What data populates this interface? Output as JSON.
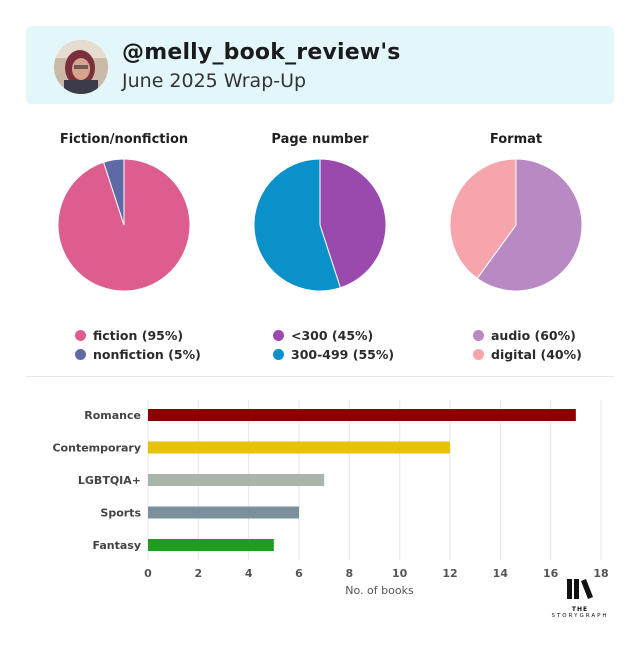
{
  "header": {
    "username": "@melly_book_review's",
    "subtitle": "June 2025 Wrap-Up"
  },
  "chart_data": [
    {
      "type": "pie",
      "title": "Fiction/nonfiction",
      "slices": [
        {
          "label": "fiction (95%)",
          "value": 95,
          "color": "#dd5e8e"
        },
        {
          "label": "nonfiction (5%)",
          "value": 5,
          "color": "#5e6aa6"
        }
      ]
    },
    {
      "type": "pie",
      "title": "Page number",
      "slices": [
        {
          "label": "<300 (45%)",
          "value": 45,
          "color": "#9a4aad"
        },
        {
          "label": "300-499 (55%)",
          "value": 55,
          "color": "#0a91c9"
        }
      ]
    },
    {
      "type": "pie",
      "title": "Format",
      "slices": [
        {
          "label": "audio (60%)",
          "value": 60,
          "color": "#b889c3"
        },
        {
          "label": "digital (40%)",
          "value": 40,
          "color": "#f7a5ac"
        }
      ]
    },
    {
      "type": "bar",
      "orientation": "horizontal",
      "categories": [
        "Romance",
        "Contemporary",
        "LGBTQIA+",
        "Sports",
        "Fantasy"
      ],
      "values": [
        17,
        12,
        7,
        6,
        5
      ],
      "colors": [
        "#8b0000",
        "#e8c208",
        "#a9b4aa",
        "#7b909c",
        "#1f9d1f"
      ],
      "xlabel": "No. of books",
      "xlim": [
        0,
        18
      ],
      "xticks": [
        0,
        2,
        4,
        6,
        8,
        10,
        12,
        14,
        16,
        18
      ],
      "grid": true
    }
  ],
  "branding": {
    "logo_top": "THE",
    "logo_bottom": "STORYGRAPH"
  }
}
